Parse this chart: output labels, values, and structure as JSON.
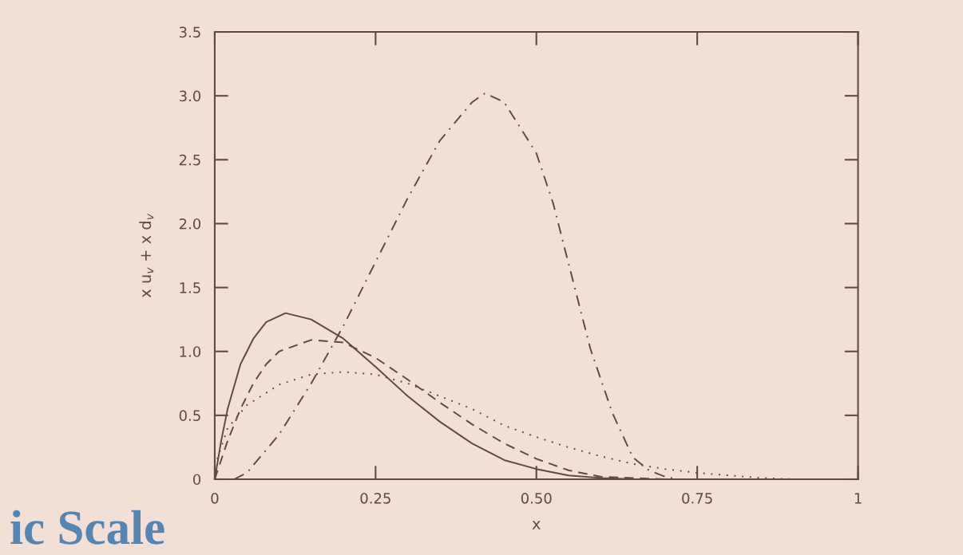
{
  "chart_data": {
    "type": "line",
    "xlabel": "x",
    "ylabel": "x u$_{v}$ + x d$_{v}$",
    "xlim": [
      0,
      1
    ],
    "ylim": [
      0,
      3.5
    ],
    "xticks": [
      0,
      {
        "value": 0.25,
        "label": "0.25"
      },
      {
        "value": 0.5,
        "label": "0.50"
      },
      {
        "value": 0.75,
        "label": "0.75"
      },
      1
    ],
    "yticks": [
      0,
      {
        "value": 0.5,
        "label": "0.5"
      },
      {
        "value": 1,
        "label": "1.0"
      },
      {
        "value": 1.5,
        "label": "1.5"
      },
      {
        "value": 2,
        "label": "2.0"
      },
      {
        "value": 2.5,
        "label": "2.5"
      },
      {
        "value": 3,
        "label": "3.0"
      },
      {
        "value": 3.5,
        "label": "3.5"
      }
    ],
    "grid": false,
    "legend": false,
    "annotations": [
      "ic Scale"
    ],
    "series": [
      {
        "color": "#5e4a40",
        "line_style": "solid",
        "x": [
          0,
          0.01,
          0.02,
          0.04,
          0.06,
          0.08,
          0.11,
          0.15,
          0.2,
          0.25,
          0.3,
          0.35,
          0.4,
          0.45,
          0.5,
          0.55,
          0.6,
          0.65,
          0.7
        ],
        "values": [
          0,
          0.3,
          0.55,
          0.9,
          1.1,
          1.23,
          1.3,
          1.25,
          1.1,
          0.88,
          0.65,
          0.45,
          0.28,
          0.15,
          0.08,
          0.03,
          0.01,
          0,
          0
        ]
      },
      {
        "color": "#5e4a40",
        "line_style": "dashed",
        "x": [
          0,
          0.02,
          0.04,
          0.06,
          0.08,
          0.1,
          0.15,
          0.2,
          0.25,
          0.3,
          0.35,
          0.4,
          0.45,
          0.5,
          0.55,
          0.6,
          0.65,
          0.7
        ],
        "values": [
          0,
          0.3,
          0.55,
          0.75,
          0.9,
          1.0,
          1.09,
          1.07,
          0.95,
          0.78,
          0.6,
          0.43,
          0.28,
          0.16,
          0.07,
          0.02,
          0.01,
          0
        ]
      },
      {
        "color": "#5e4a40",
        "line_style": "dotted",
        "x": [
          0,
          0.02,
          0.05,
          0.1,
          0.15,
          0.2,
          0.25,
          0.3,
          0.35,
          0.4,
          0.45,
          0.5,
          0.55,
          0.6,
          0.65,
          0.7,
          0.75,
          0.8,
          0.85,
          0.9
        ],
        "values": [
          0.1,
          0.4,
          0.58,
          0.74,
          0.82,
          0.84,
          0.82,
          0.75,
          0.65,
          0.55,
          0.42,
          0.33,
          0.25,
          0.18,
          0.12,
          0.08,
          0.05,
          0.03,
          0.01,
          0
        ]
      },
      {
        "color": "#5e4a40",
        "line_style": "dashdot",
        "x": [
          0.03,
          0.05,
          0.1,
          0.15,
          0.2,
          0.25,
          0.3,
          0.35,
          0.4,
          0.42,
          0.45,
          0.5,
          0.526,
          0.556,
          0.584,
          0.618,
          0.65,
          0.675,
          0.7,
          0.72
        ],
        "values": [
          0,
          0.05,
          0.35,
          0.75,
          1.2,
          1.7,
          2.2,
          2.65,
          2.95,
          3.02,
          2.95,
          2.55,
          2.16,
          1.57,
          1.02,
          0.52,
          0.17,
          0.07,
          0.02,
          0
        ]
      }
    ]
  }
}
